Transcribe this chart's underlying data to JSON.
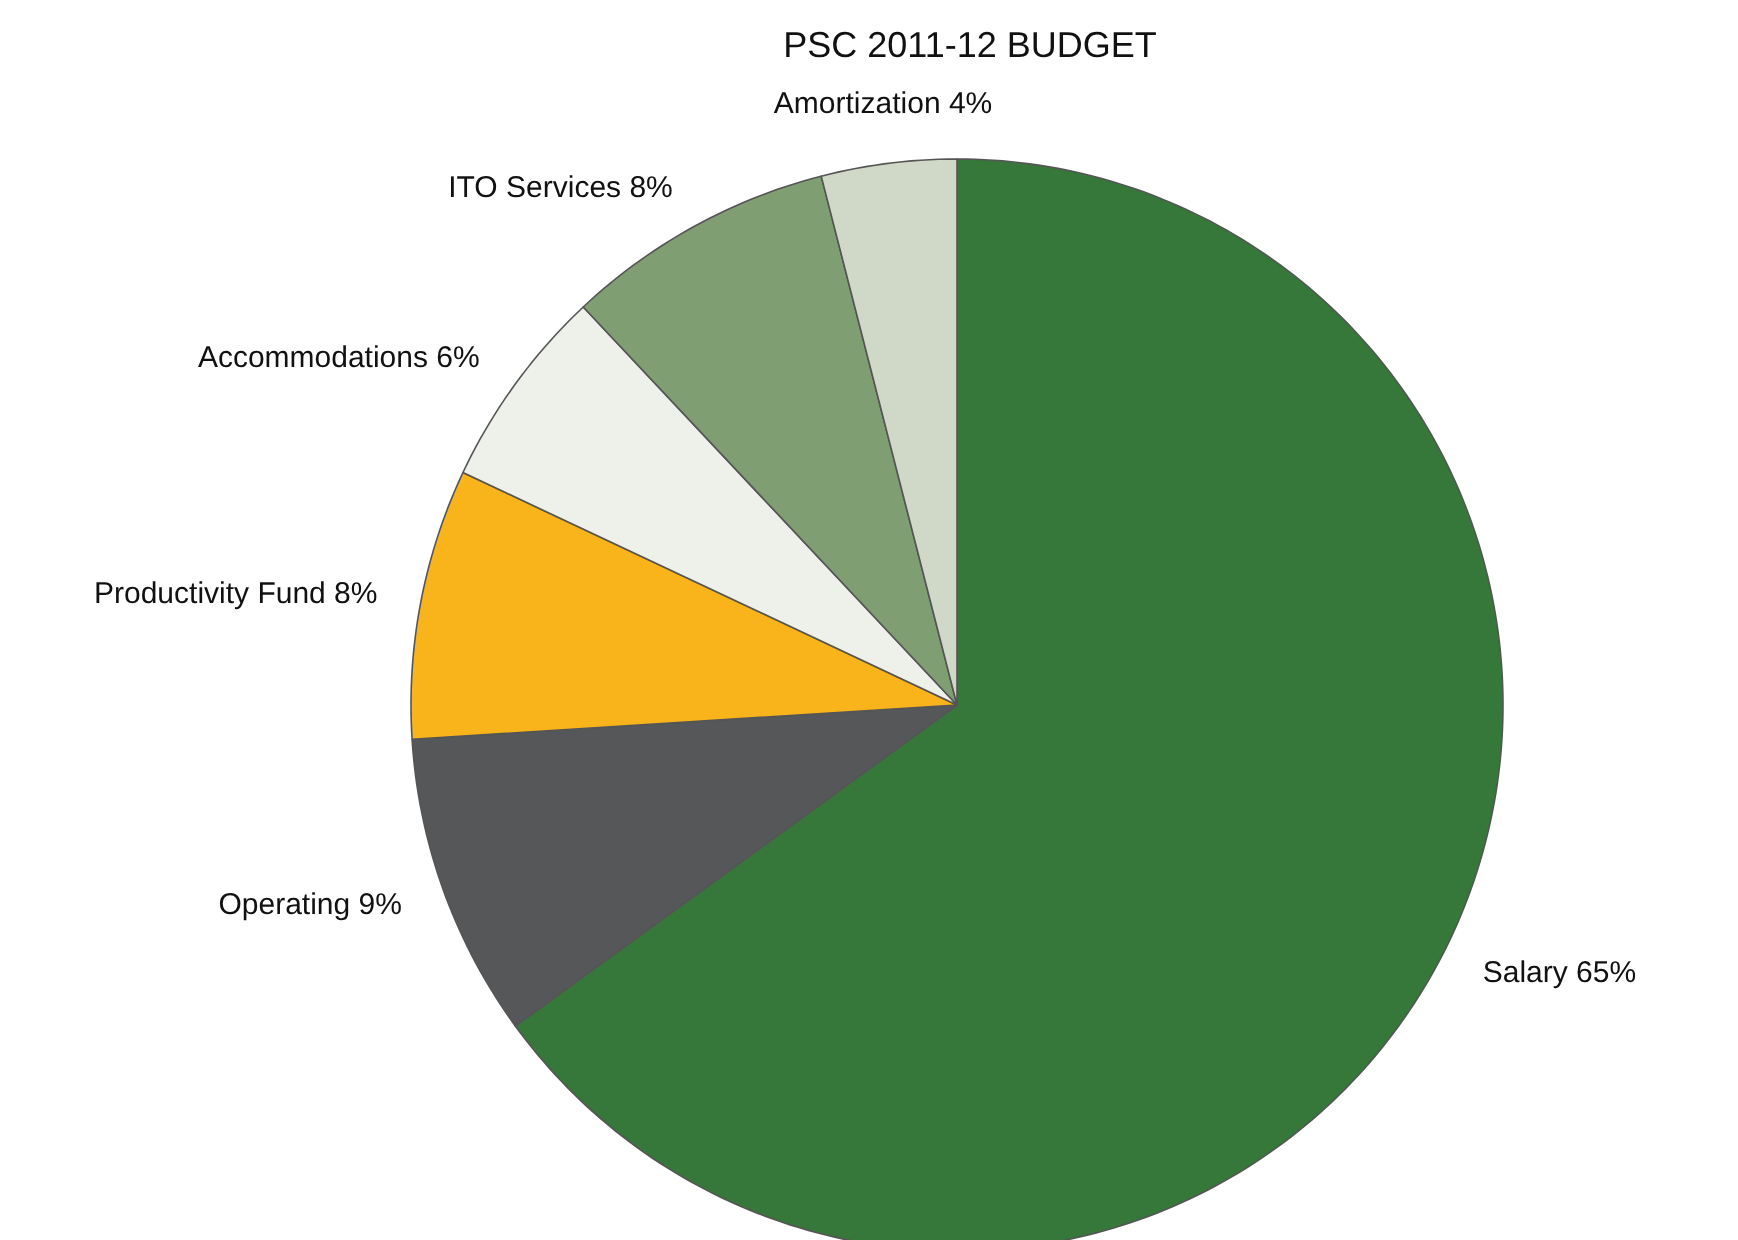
{
  "chart_data": {
    "type": "pie",
    "title": "PSC 2011-12 BUDGET",
    "categories": [
      "Salary",
      "Operating",
      "Productivity Fund",
      "Accommodations",
      "ITO Services",
      "Amortization"
    ],
    "values": [
      65,
      9,
      8,
      6,
      8,
      4
    ],
    "value_labels": [
      "65%",
      "9%",
      "8%",
      "6%",
      "8%",
      "4%"
    ],
    "colors": [
      "#36783a",
      "#555759",
      "#f9b31b",
      "#eef0ea",
      "#7f9f73",
      "#d0d8c8"
    ],
    "legend": false
  }
}
